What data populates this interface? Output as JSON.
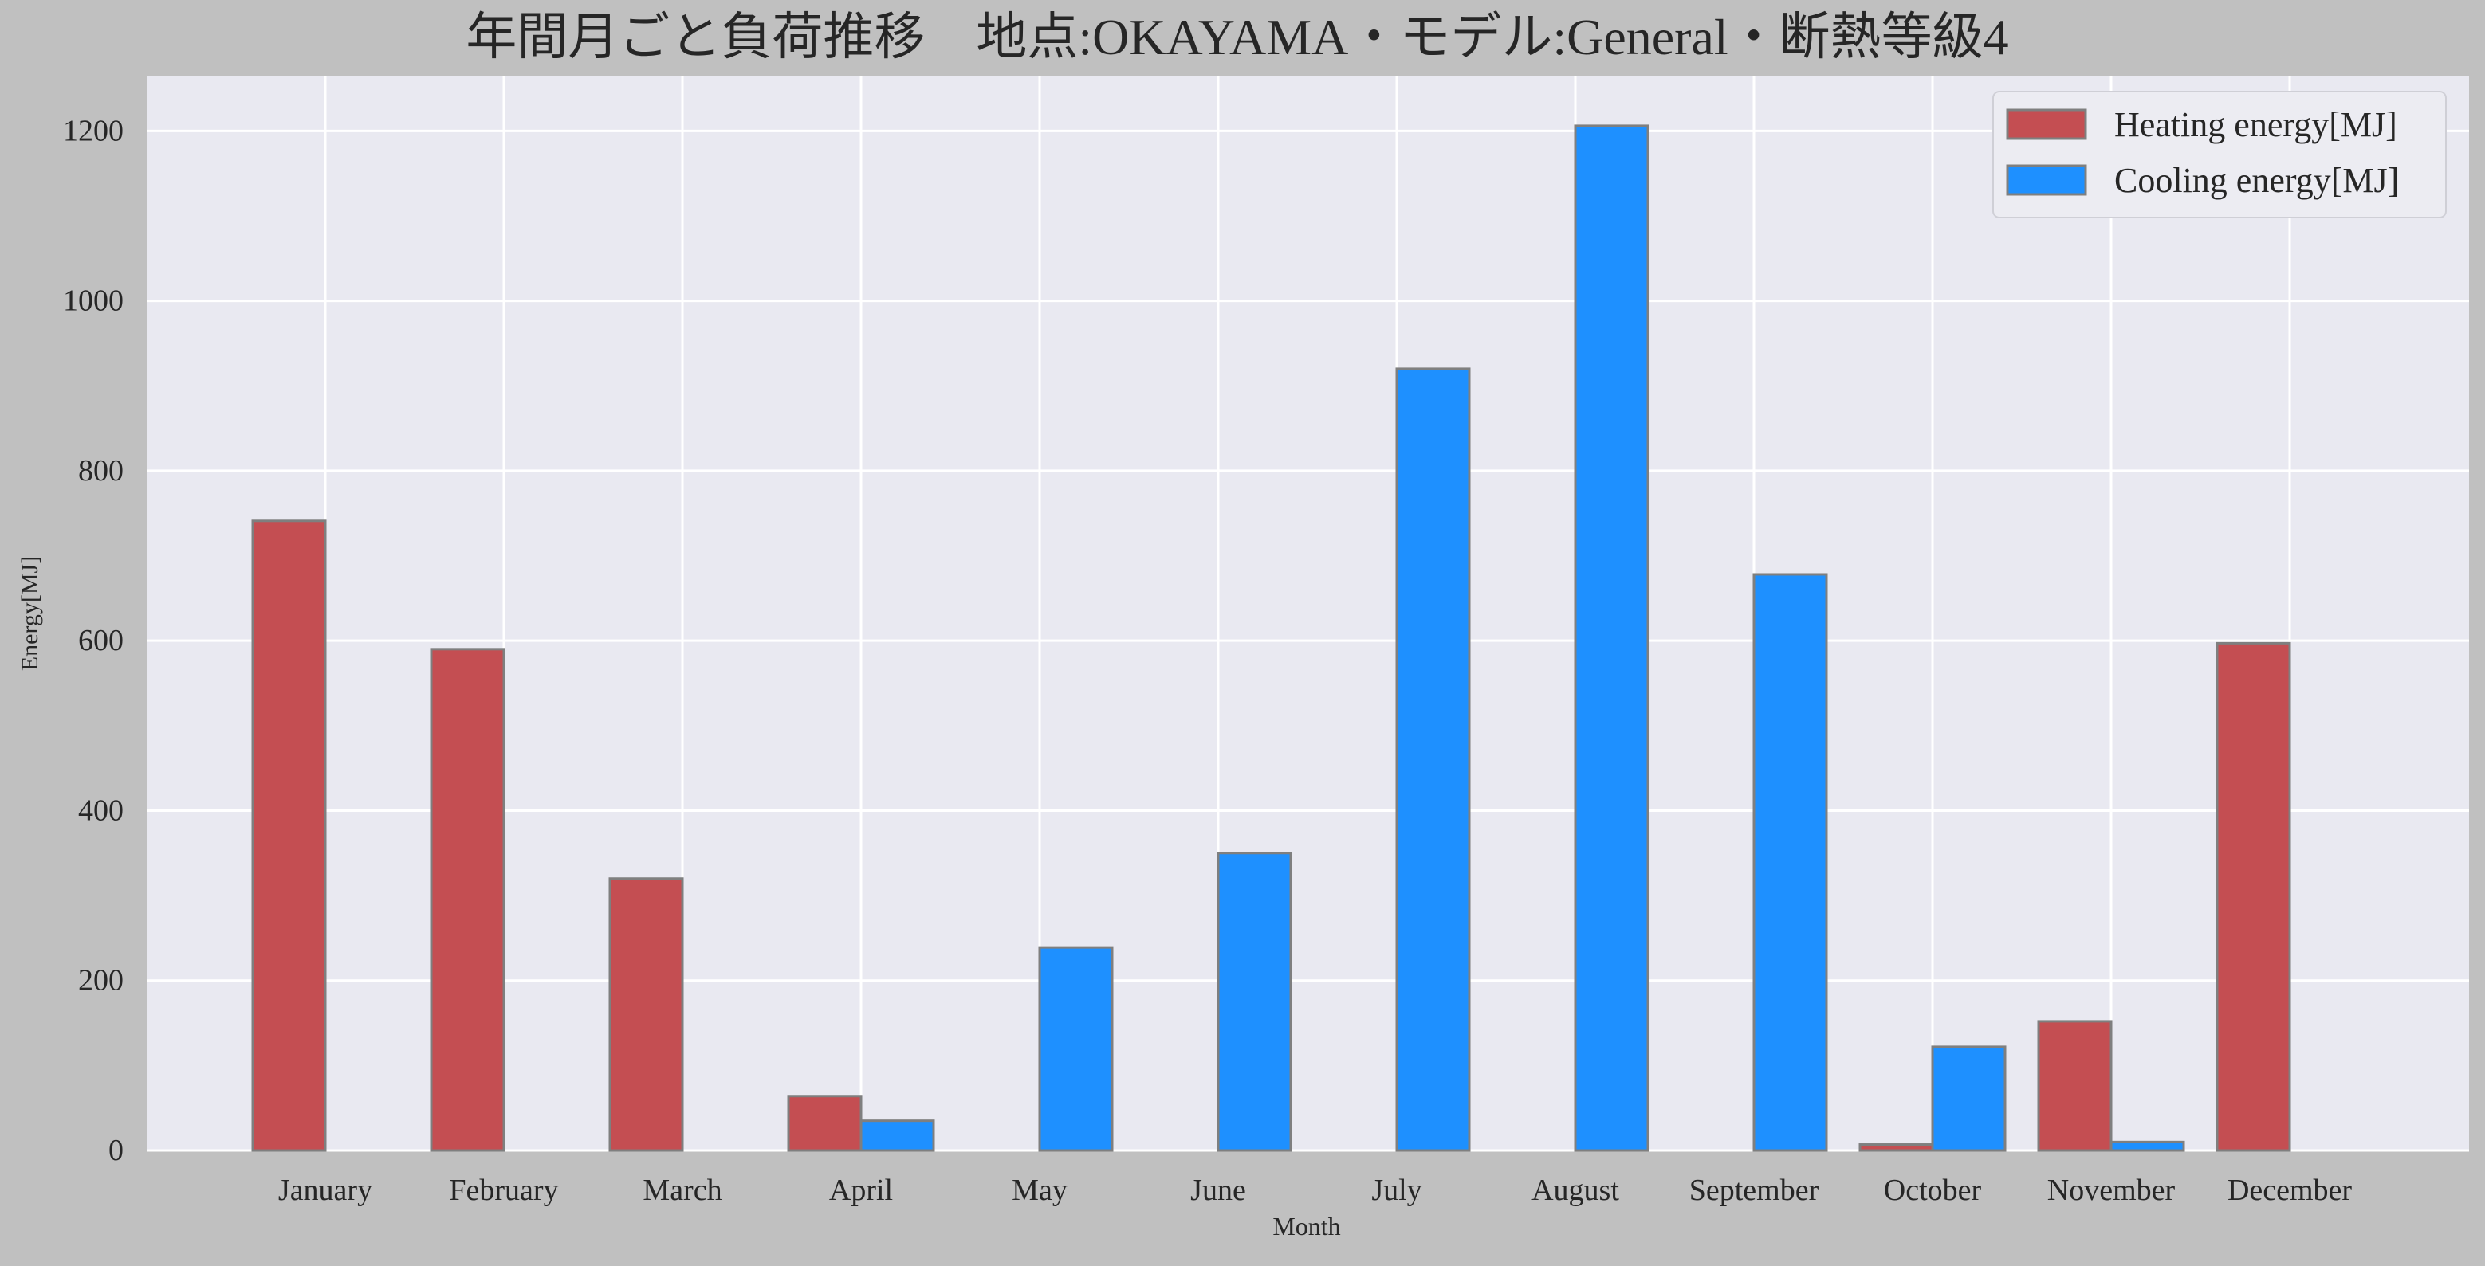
{
  "chart_data": {
    "type": "bar",
    "title": "年間月ごと負荷推移　地点:OKAYAMA・モデル:General・断熱等級4",
    "xlabel": "Month",
    "ylabel": "Energy[MJ]",
    "ylim": [
      0,
      1265
    ],
    "yticks": [
      0,
      200,
      400,
      600,
      800,
      1000,
      1200
    ],
    "grid": true,
    "legend_position": "top-right",
    "categories": [
      "January",
      "February",
      "March",
      "April",
      "May",
      "June",
      "July",
      "August",
      "September",
      "October",
      "November",
      "December"
    ],
    "series": [
      {
        "name": "Heating energy[MJ]",
        "color": "#c44e52",
        "values": [
          741,
          590,
          320,
          64,
          0,
          0,
          0,
          0,
          0,
          7,
          152,
          597
        ]
      },
      {
        "name": "Cooling energy[MJ]",
        "color": "#1e90ff",
        "values": [
          0,
          0,
          0,
          35,
          239,
          350,
          920,
          1206,
          678,
          122,
          10,
          0
        ]
      }
    ]
  }
}
